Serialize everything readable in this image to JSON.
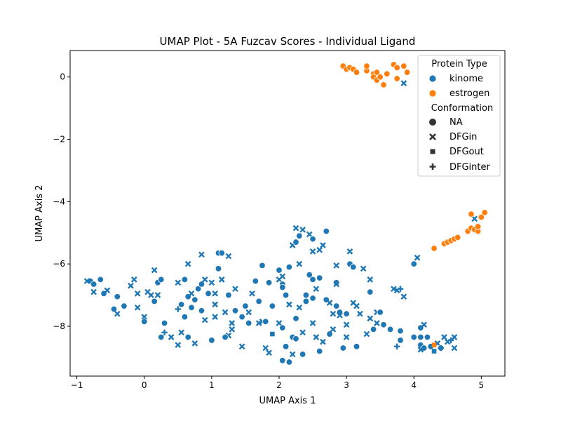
{
  "chart_data": {
    "type": "scatter",
    "title": "UMAP Plot - 5A Fuzcav Scores - Individual Ligand",
    "xlabel": "UMAP Axis 1",
    "ylabel": "UMAP Axis 2",
    "xlim": [
      -1.1,
      5.35
    ],
    "ylim": [
      -9.6,
      0.85
    ],
    "xticks": [
      -1,
      0,
      1,
      2,
      3,
      4,
      5
    ],
    "yticks": [
      0,
      -2,
      -4,
      -6,
      -8
    ],
    "xtick_labels": [
      "−1",
      "0",
      "1",
      "2",
      "3",
      "4",
      "5"
    ],
    "ytick_labels": [
      "0",
      "−2",
      "−4",
      "−6",
      "−8"
    ],
    "grid": false,
    "legend": {
      "placement": "top-right",
      "hue_title": "Protein Type",
      "hue_entries": [
        {
          "label": "kinome",
          "color": "#1f77b4"
        },
        {
          "label": "estrogen",
          "color": "#ff7f0e"
        }
      ],
      "style_title": "Conformation",
      "style_entries": [
        {
          "label": "NA",
          "marker": "circle"
        },
        {
          "label": "DFGin",
          "marker": "x"
        },
        {
          "label": "DFGout",
          "marker": "square"
        },
        {
          "label": "DFGinter",
          "marker": "plus"
        }
      ]
    },
    "series": [
      {
        "name": "kinome",
        "color": "#1f77b4",
        "points": [
          [
            -0.8,
            -6.55,
            "o"
          ],
          [
            -0.65,
            -6.5,
            "o"
          ],
          [
            -0.75,
            -6.65,
            "o"
          ],
          [
            -0.85,
            -6.55,
            "x"
          ],
          [
            -0.75,
            -6.9,
            "x"
          ],
          [
            -0.6,
            -6.95,
            "o"
          ],
          [
            -0.55,
            -6.85,
            "x"
          ],
          [
            -0.45,
            -7.45,
            "o"
          ],
          [
            -0.3,
            -7.35,
            "o"
          ],
          [
            -0.4,
            -7.6,
            "x"
          ],
          [
            -0.4,
            -7.05,
            "o"
          ],
          [
            -0.2,
            -6.7,
            "x"
          ],
          [
            -0.15,
            -6.5,
            "x"
          ],
          [
            -0.1,
            -6.95,
            "x"
          ],
          [
            -0.1,
            -7.4,
            "x"
          ],
          [
            0.0,
            -7.7,
            "x"
          ],
          [
            0.05,
            -6.9,
            "x"
          ],
          [
            0.0,
            -7.85,
            "o"
          ],
          [
            0.1,
            -7.0,
            "x"
          ],
          [
            0.15,
            -6.2,
            "x"
          ],
          [
            0.2,
            -6.6,
            "o"
          ],
          [
            0.25,
            -6.5,
            "o"
          ],
          [
            0.2,
            -7.0,
            "x"
          ],
          [
            0.15,
            -7.2,
            "o"
          ],
          [
            0.3,
            -7.9,
            "o"
          ],
          [
            0.25,
            -8.35,
            "o"
          ],
          [
            0.3,
            -8.2,
            "+"
          ],
          [
            0.4,
            -8.35,
            "x"
          ],
          [
            0.5,
            -7.45,
            "+"
          ],
          [
            0.55,
            -7.3,
            "o"
          ],
          [
            0.5,
            -6.6,
            "x"
          ],
          [
            0.55,
            -8.2,
            "x"
          ],
          [
            0.5,
            -8.6,
            "x"
          ],
          [
            0.6,
            -6.5,
            "o"
          ],
          [
            0.6,
            -7.7,
            "o"
          ],
          [
            0.65,
            -7.05,
            "o"
          ],
          [
            0.65,
            -6.0,
            "x"
          ],
          [
            0.7,
            -6.95,
            "x"
          ],
          [
            0.7,
            -7.4,
            "o"
          ],
          [
            0.65,
            -8.35,
            "o"
          ],
          [
            0.75,
            -8.55,
            "x"
          ],
          [
            0.75,
            -7.15,
            "o"
          ],
          [
            0.8,
            -6.8,
            "o"
          ],
          [
            0.85,
            -7.5,
            "o"
          ],
          [
            0.85,
            -5.7,
            "x"
          ],
          [
            0.85,
            -6.65,
            "o"
          ],
          [
            0.9,
            -6.5,
            "x"
          ],
          [
            0.9,
            -7.8,
            "x"
          ],
          [
            0.95,
            -6.95,
            "o"
          ],
          [
            1.0,
            -6.6,
            "x"
          ],
          [
            1.0,
            -8.45,
            "o"
          ],
          [
            1.05,
            -6.95,
            "x"
          ],
          [
            1.05,
            -7.3,
            "x"
          ],
          [
            1.05,
            -7.7,
            "x"
          ],
          [
            1.1,
            -6.15,
            "o"
          ],
          [
            1.1,
            -5.65,
            "o"
          ],
          [
            1.15,
            -5.65,
            "o"
          ],
          [
            1.15,
            -6.5,
            "x"
          ],
          [
            1.2,
            -7.55,
            "x"
          ],
          [
            1.25,
            -8.3,
            "x"
          ],
          [
            1.25,
            -7.0,
            "o"
          ],
          [
            1.25,
            -5.75,
            "x"
          ],
          [
            1.3,
            -8.1,
            "x"
          ],
          [
            1.3,
            -7.9,
            "x"
          ],
          [
            1.35,
            -7.5,
            "o"
          ],
          [
            1.35,
            -6.8,
            "x"
          ],
          [
            1.45,
            -7.7,
            "o"
          ],
          [
            1.45,
            -8.65,
            "x"
          ],
          [
            1.5,
            -7.35,
            "o"
          ],
          [
            1.55,
            -7.55,
            "x"
          ],
          [
            1.55,
            -7.9,
            "o"
          ],
          [
            1.6,
            -6.95,
            "x"
          ],
          [
            1.65,
            -6.55,
            "o"
          ],
          [
            1.7,
            -7.2,
            "o"
          ],
          [
            1.7,
            -7.9,
            "x"
          ],
          [
            1.75,
            -7.85,
            "x"
          ],
          [
            1.75,
            -6.05,
            "o"
          ],
          [
            1.8,
            -7.85,
            "o"
          ],
          [
            1.8,
            -8.7,
            "x"
          ],
          [
            1.85,
            -8.85,
            "x"
          ],
          [
            1.85,
            -6.6,
            "o"
          ],
          [
            1.9,
            -7.35,
            "o"
          ],
          [
            1.9,
            -8.25,
            "s"
          ],
          [
            2.0,
            -6.2,
            "o"
          ],
          [
            2.0,
            -6.5,
            "x"
          ],
          [
            2.0,
            -7.9,
            "x"
          ],
          [
            2.05,
            -6.65,
            "o"
          ],
          [
            2.05,
            -6.4,
            "x"
          ],
          [
            2.05,
            -6.75,
            "o"
          ],
          [
            2.05,
            -8.05,
            "o"
          ],
          [
            2.05,
            -9.1,
            "o"
          ],
          [
            2.1,
            -8.65,
            "o"
          ],
          [
            2.1,
            -7.0,
            "o"
          ],
          [
            2.15,
            -6.1,
            "o"
          ],
          [
            2.15,
            -7.3,
            "x"
          ],
          [
            2.15,
            -9.15,
            "o"
          ],
          [
            2.2,
            -5.4,
            "x"
          ],
          [
            2.2,
            -8.35,
            "o"
          ],
          [
            2.2,
            -8.9,
            "x"
          ],
          [
            2.25,
            -4.85,
            "x"
          ],
          [
            2.25,
            -5.3,
            "o"
          ],
          [
            2.25,
            -7.75,
            "o"
          ],
          [
            2.3,
            -6.0,
            "x"
          ],
          [
            2.3,
            -7.4,
            "x"
          ],
          [
            2.3,
            -5.1,
            "o"
          ],
          [
            2.35,
            -8.2,
            "x"
          ],
          [
            2.35,
            -8.9,
            "o"
          ],
          [
            2.35,
            -4.9,
            "x"
          ],
          [
            2.4,
            -7.0,
            "o"
          ],
          [
            2.4,
            -7.2,
            "o"
          ],
          [
            2.45,
            -6.35,
            "o"
          ],
          [
            2.45,
            -5.05,
            "x"
          ],
          [
            2.5,
            -5.2,
            "o"
          ],
          [
            2.5,
            -5.6,
            "x"
          ],
          [
            2.5,
            -6.5,
            "o"
          ],
          [
            2.5,
            -7.1,
            "o"
          ],
          [
            2.5,
            -7.9,
            "x"
          ],
          [
            2.55,
            -6.8,
            "x"
          ],
          [
            2.55,
            -8.35,
            "x"
          ],
          [
            2.6,
            -8.8,
            "o"
          ],
          [
            2.6,
            -6.45,
            "o"
          ],
          [
            2.6,
            -5.55,
            "x"
          ],
          [
            2.65,
            -5.4,
            "x"
          ],
          [
            2.65,
            -8.5,
            "x"
          ],
          [
            2.7,
            -4.95,
            "o"
          ],
          [
            2.7,
            -7.15,
            "o"
          ],
          [
            2.75,
            -7.25,
            "x"
          ],
          [
            2.75,
            -8.25,
            "o"
          ],
          [
            2.8,
            -7.6,
            "x"
          ],
          [
            2.8,
            -8.1,
            "x"
          ],
          [
            2.85,
            -6.6,
            "o"
          ],
          [
            2.85,
            -6.65,
            "x"
          ],
          [
            2.85,
            -6.05,
            "x"
          ],
          [
            2.85,
            -7.35,
            "o"
          ],
          [
            2.9,
            -7.55,
            "o"
          ],
          [
            2.9,
            -7.65,
            "x"
          ],
          [
            2.95,
            -8.7,
            "o"
          ],
          [
            3.0,
            -7.6,
            "o"
          ],
          [
            3.0,
            -7.95,
            "x"
          ],
          [
            3.0,
            -8.35,
            "x"
          ],
          [
            3.05,
            -5.6,
            "x"
          ],
          [
            3.05,
            -6.0,
            "o"
          ],
          [
            3.1,
            -6.1,
            "o"
          ],
          [
            3.1,
            -7.25,
            "x"
          ],
          [
            3.15,
            -7.35,
            "x"
          ],
          [
            3.15,
            -8.65,
            "o"
          ],
          [
            3.2,
            -7.6,
            "x"
          ],
          [
            3.25,
            -6.15,
            "x"
          ],
          [
            3.3,
            -8.25,
            "x"
          ],
          [
            3.35,
            -6.5,
            "x"
          ],
          [
            3.35,
            -6.9,
            "o"
          ],
          [
            3.35,
            -7.75,
            "x"
          ],
          [
            3.4,
            -8.1,
            "o"
          ],
          [
            3.45,
            -7.55,
            "x"
          ],
          [
            3.45,
            -7.9,
            "x"
          ],
          [
            3.5,
            -7.55,
            "o"
          ],
          [
            3.55,
            -7.95,
            "o"
          ],
          [
            3.65,
            -8.1,
            "o"
          ],
          [
            3.7,
            -6.8,
            "x"
          ],
          [
            3.75,
            -6.85,
            "x"
          ],
          [
            3.75,
            -8.65,
            "+"
          ],
          [
            3.8,
            -8.15,
            "o"
          ],
          [
            3.8,
            -8.45,
            "o"
          ],
          [
            3.8,
            -6.8,
            "+"
          ],
          [
            3.85,
            -7.05,
            "x"
          ],
          [
            4.0,
            -6.0,
            "o"
          ],
          [
            4.05,
            -5.8,
            "x"
          ],
          [
            4.0,
            -8.35,
            "o"
          ],
          [
            4.1,
            -8.05,
            "o"
          ],
          [
            4.1,
            -8.35,
            "o"
          ],
          [
            4.1,
            -8.6,
            "o"
          ],
          [
            4.15,
            -7.95,
            "x"
          ],
          [
            4.15,
            -8.7,
            "o"
          ],
          [
            4.2,
            -8.35,
            "o"
          ],
          [
            4.25,
            -8.65,
            "o"
          ],
          [
            4.3,
            -8.8,
            "s"
          ],
          [
            4.35,
            -8.55,
            "x"
          ],
          [
            4.4,
            -8.7,
            "o"
          ],
          [
            4.4,
            -8.7,
            "+"
          ],
          [
            4.45,
            -8.35,
            "x"
          ],
          [
            4.5,
            -8.5,
            "x"
          ],
          [
            4.55,
            -8.45,
            "+"
          ],
          [
            4.6,
            -8.35,
            "x"
          ],
          [
            4.6,
            -8.7,
            "x"
          ],
          [
            4.9,
            -4.55,
            "x"
          ],
          [
            3.85,
            -0.2,
            "x"
          ],
          [
            4.1,
            -8.75,
            "x"
          ],
          [
            1.2,
            -8.35,
            "o"
          ],
          [
            2.25,
            -8.4,
            "o"
          ]
        ]
      },
      {
        "name": "estrogen",
        "color": "#ff7f0e",
        "points": [
          [
            2.95,
            0.35,
            "o"
          ],
          [
            3.0,
            0.25,
            "o"
          ],
          [
            3.05,
            0.3,
            "o"
          ],
          [
            3.1,
            0.25,
            "o"
          ],
          [
            3.15,
            0.15,
            "o"
          ],
          [
            3.3,
            0.2,
            "o"
          ],
          [
            3.3,
            0.35,
            "o"
          ],
          [
            3.4,
            0.1,
            "o"
          ],
          [
            3.4,
            0.0,
            "o"
          ],
          [
            3.45,
            -0.1,
            "o"
          ],
          [
            3.45,
            0.15,
            "o"
          ],
          [
            3.5,
            0.0,
            "o"
          ],
          [
            3.55,
            -0.25,
            "o"
          ],
          [
            3.6,
            0.1,
            "o"
          ],
          [
            3.7,
            0.4,
            "o"
          ],
          [
            3.75,
            -0.05,
            "o"
          ],
          [
            3.75,
            0.3,
            "o"
          ],
          [
            3.85,
            0.35,
            "o"
          ],
          [
            3.9,
            0.15,
            "o"
          ],
          [
            4.3,
            -5.5,
            "o"
          ],
          [
            4.45,
            -5.35,
            "o"
          ],
          [
            4.5,
            -5.3,
            "o"
          ],
          [
            4.55,
            -5.25,
            "o"
          ],
          [
            4.6,
            -5.2,
            "o"
          ],
          [
            4.65,
            -5.15,
            "o"
          ],
          [
            4.8,
            -4.95,
            "o"
          ],
          [
            4.85,
            -4.85,
            "o"
          ],
          [
            4.85,
            -4.4,
            "o"
          ],
          [
            4.9,
            -4.9,
            "o"
          ],
          [
            4.95,
            -4.95,
            "o"
          ],
          [
            4.95,
            -4.8,
            "o"
          ],
          [
            5.0,
            -4.5,
            "o"
          ],
          [
            5.05,
            -4.35,
            "o"
          ],
          [
            4.3,
            -8.6,
            "s"
          ]
        ]
      }
    ]
  }
}
